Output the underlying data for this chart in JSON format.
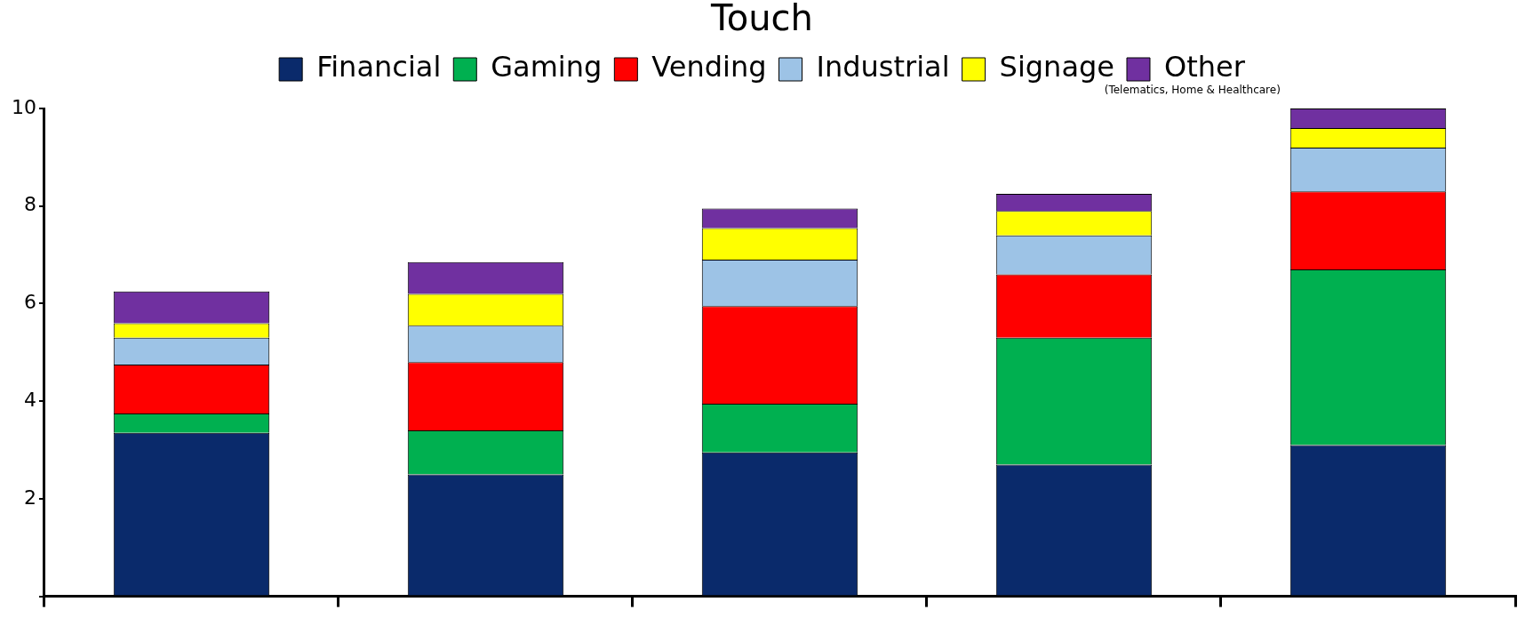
{
  "chart_data": {
    "type": "bar",
    "title": "Touch",
    "stacked": true,
    "legend": "top",
    "grid": false,
    "categories": [
      null,
      null,
      null,
      null,
      null
    ],
    "series": [
      {
        "name": "Financial",
        "color": "#0a2a6b",
        "values": [
          3.35,
          2.5,
          2.95,
          2.7,
          3.1
        ]
      },
      {
        "name": "Gaming",
        "color": "#00b050",
        "values": [
          0.4,
          0.9,
          1.0,
          2.6,
          3.6
        ]
      },
      {
        "name": "Vending",
        "color": "#ff0000",
        "values": [
          1.0,
          1.4,
          2.0,
          1.3,
          1.6
        ]
      },
      {
        "name": "Industrial",
        "color": "#9dc3e6",
        "values": [
          0.55,
          0.75,
          0.95,
          0.8,
          0.9
        ]
      },
      {
        "name": "Signage",
        "color": "#ffff00",
        "values": [
          0.3,
          0.65,
          0.65,
          0.5,
          0.4
        ]
      },
      {
        "name": "Other",
        "color": "#7030a0",
        "values": [
          0.65,
          0.65,
          0.4,
          0.35,
          0.4
        ]
      }
    ],
    "annotations": [
      "(Telematics, Home & Healthcare)"
    ],
    "ylim": [
      0,
      10
    ],
    "yticks": [
      {
        "value": 0,
        "label": null
      },
      2,
      4,
      6,
      8,
      10
    ]
  }
}
